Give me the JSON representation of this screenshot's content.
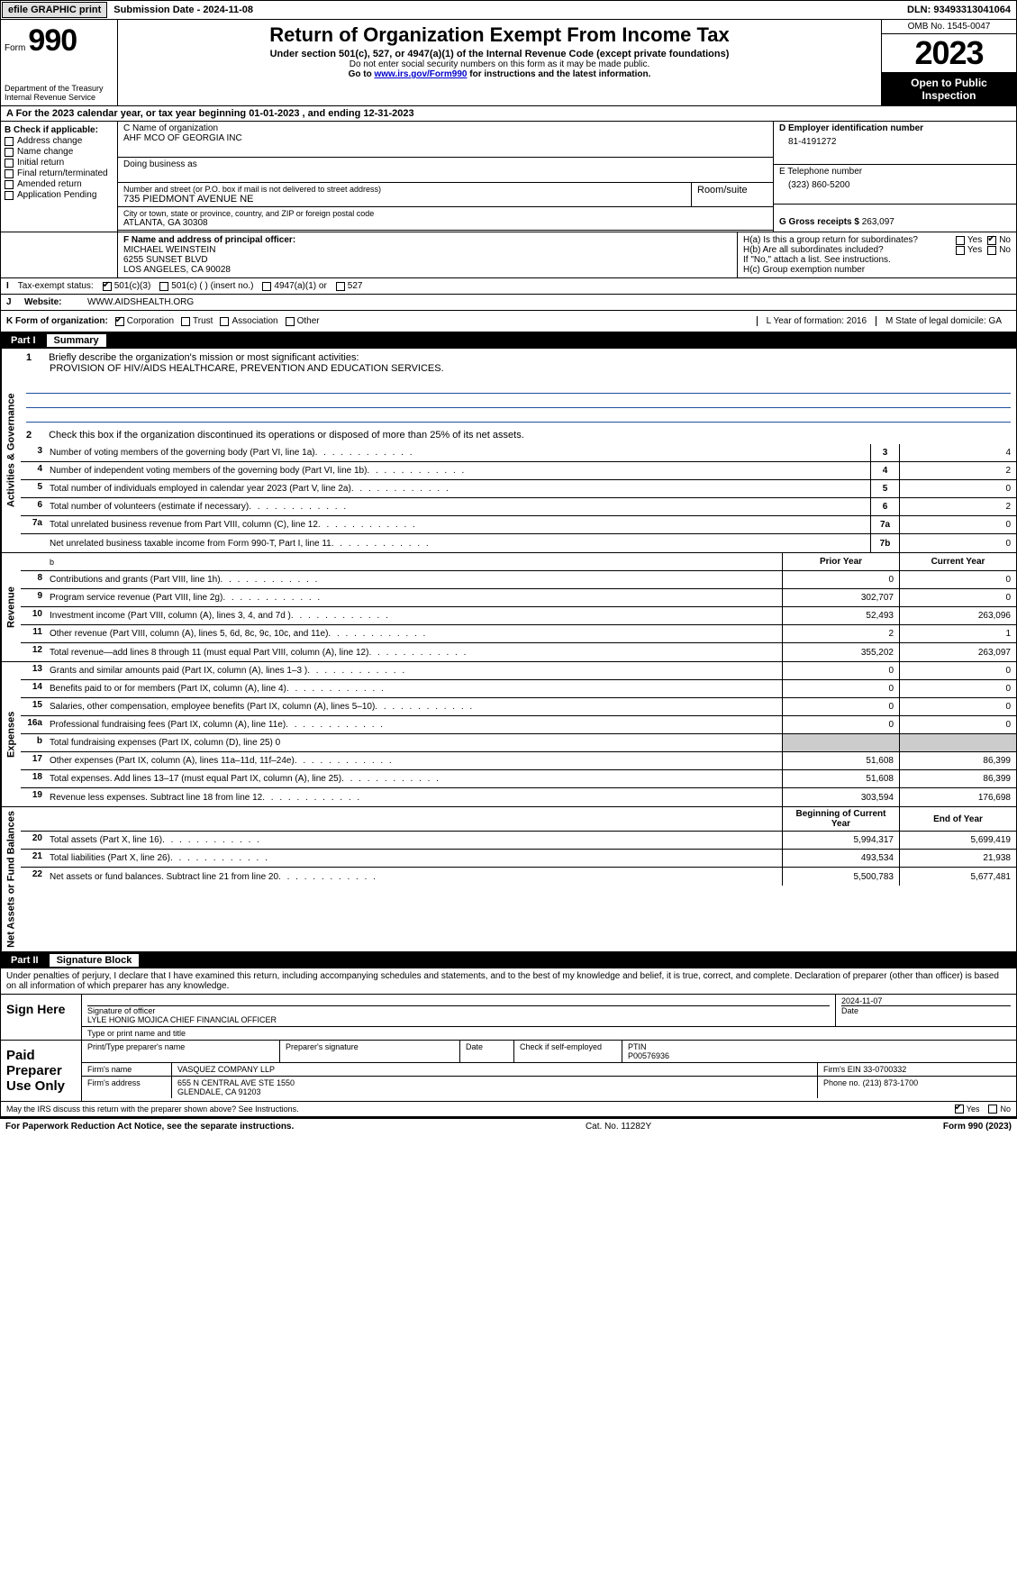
{
  "top_bar": {
    "efile": "efile GRAPHIC print",
    "sub_date_label": "Submission Date - 2024-11-08",
    "dln": "DLN: 93493313041064"
  },
  "header": {
    "form_prefix": "Form",
    "form_num": "990",
    "dept": "Department of the Treasury Internal Revenue Service",
    "title": "Return of Organization Exempt From Income Tax",
    "subtitle": "Under section 501(c), 527, or 4947(a)(1) of the Internal Revenue Code (except private foundations)",
    "ssn_note": "Do not enter social security numbers on this form as it may be made public.",
    "goto_prefix": "Go to ",
    "goto_link": "www.irs.gov/Form990",
    "goto_suffix": " for instructions and the latest information.",
    "omb": "OMB No. 1545-0047",
    "year": "2023",
    "open_pub": "Open to Public Inspection"
  },
  "row_a": "A For the 2023 calendar year, or tax year beginning 01-01-2023    , and ending 12-31-2023",
  "section_b": {
    "label": "B Check if applicable:",
    "items": [
      "Address change",
      "Name change",
      "Initial return",
      "Final return/terminated",
      "Amended return",
      "Application Pending"
    ]
  },
  "section_c": {
    "name_label": "C Name of organization",
    "name": "AHF MCO OF GEORGIA INC",
    "dba_label": "Doing business as",
    "addr_label": "Number and street (or P.O. box if mail is not delivered to street address)",
    "room_label": "Room/suite",
    "addr": "735 PIEDMONT AVENUE NE",
    "city_label": "City or town, state or province, country, and ZIP or foreign postal code",
    "city": "ATLANTA, GA   30308",
    "officer_label": "F  Name and address of principal officer:",
    "officer_name": "MICHAEL WEINSTEIN",
    "officer_addr1": "6255 SUNSET BLVD",
    "officer_addr2": "LOS ANGELES, CA  90028"
  },
  "section_d": {
    "label": "D Employer identification number",
    "value": "81-4191272"
  },
  "section_e": {
    "label": "E Telephone number",
    "value": "(323) 860-5200"
  },
  "section_g": {
    "label": "G Gross receipts $",
    "value": "263,097"
  },
  "section_h": {
    "h_a": "H(a)  Is this a group return for subordinates?",
    "h_b": "H(b)  Are all subordinates included?",
    "h_b_note": "If \"No,\" attach a list. See instructions.",
    "h_c": "H(c)  Group exemption number",
    "yes": "Yes",
    "no": "No"
  },
  "tax_status": {
    "label_i": "I",
    "label": "Tax-exempt status:",
    "opt1": "501(c)(3)",
    "opt2": "501(c) (  ) (insert no.)",
    "opt3": "4947(a)(1) or",
    "opt4": "527"
  },
  "website": {
    "label_j": "J",
    "label": "Website:",
    "value": "WWW.AIDSHEALTH.ORG"
  },
  "row_k": {
    "label": "K Form of organization:",
    "opts": [
      "Corporation",
      "Trust",
      "Association",
      "Other"
    ],
    "l": "L Year of formation: 2016",
    "m": "M State of legal domicile: GA"
  },
  "part1": {
    "num": "Part I",
    "title": "Summary"
  },
  "summary": {
    "sec_activities": "Activities & Governance",
    "sec_revenue": "Revenue",
    "sec_expenses": "Expenses",
    "sec_net": "Net Assets or Fund Balances",
    "l1": "Briefly describe the organization's mission or most significant activities:",
    "mission": "PROVISION OF HIV/AIDS HEALTHCARE, PREVENTION AND EDUCATION SERVICES.",
    "l2": "Check this box        if the organization discontinued its operations or disposed of more than 25% of its net assets.",
    "rows_gov": [
      {
        "n": "3",
        "d": "Number of voting members of the governing body (Part VI, line 1a)",
        "b": "3",
        "v": "4"
      },
      {
        "n": "4",
        "d": "Number of independent voting members of the governing body (Part VI, line 1b)",
        "b": "4",
        "v": "2"
      },
      {
        "n": "5",
        "d": "Total number of individuals employed in calendar year 2023 (Part V, line 2a)",
        "b": "5",
        "v": "0"
      },
      {
        "n": "6",
        "d": "Total number of volunteers (estimate if necessary)",
        "b": "6",
        "v": "2"
      },
      {
        "n": "7a",
        "d": "Total unrelated business revenue from Part VIII, column (C), line 12",
        "b": "7a",
        "v": "0"
      },
      {
        "n": "",
        "d": "Net unrelated business taxable income from Form 990-T, Part I, line 11",
        "b": "7b",
        "v": "0"
      }
    ],
    "col_prior": "Prior Year",
    "col_current": "Current Year",
    "col_begin": "Beginning of Current Year",
    "col_end": "End of Year",
    "rows_rev": [
      {
        "n": "8",
        "d": "Contributions and grants (Part VIII, line 1h)",
        "p": "0",
        "c": "0"
      },
      {
        "n": "9",
        "d": "Program service revenue (Part VIII, line 2g)",
        "p": "302,707",
        "c": "0"
      },
      {
        "n": "10",
        "d": "Investment income (Part VIII, column (A), lines 3, 4, and 7d )",
        "p": "52,493",
        "c": "263,096"
      },
      {
        "n": "11",
        "d": "Other revenue (Part VIII, column (A), lines 5, 6d, 8c, 9c, 10c, and 11e)",
        "p": "2",
        "c": "1"
      },
      {
        "n": "12",
        "d": "Total revenue—add lines 8 through 11 (must equal Part VIII, column (A), line 12)",
        "p": "355,202",
        "c": "263,097"
      }
    ],
    "rows_exp": [
      {
        "n": "13",
        "d": "Grants and similar amounts paid (Part IX, column (A), lines 1–3 )",
        "p": "0",
        "c": "0"
      },
      {
        "n": "14",
        "d": "Benefits paid to or for members (Part IX, column (A), line 4)",
        "p": "0",
        "c": "0"
      },
      {
        "n": "15",
        "d": "Salaries, other compensation, employee benefits (Part IX, column (A), lines 5–10)",
        "p": "0",
        "c": "0"
      },
      {
        "n": "16a",
        "d": "Professional fundraising fees (Part IX, column (A), line 11e)",
        "p": "0",
        "c": "0"
      },
      {
        "n": "b",
        "d": "Total fundraising expenses (Part IX, column (D), line 25) 0",
        "p": "",
        "c": "",
        "shaded": true
      },
      {
        "n": "17",
        "d": "Other expenses (Part IX, column (A), lines 11a–11d, 11f–24e)",
        "p": "51,608",
        "c": "86,399"
      },
      {
        "n": "18",
        "d": "Total expenses. Add lines 13–17 (must equal Part IX, column (A), line 25)",
        "p": "51,608",
        "c": "86,399"
      },
      {
        "n": "19",
        "d": "Revenue less expenses. Subtract line 18 from line 12",
        "p": "303,594",
        "c": "176,698"
      }
    ],
    "rows_net": [
      {
        "n": "20",
        "d": "Total assets (Part X, line 16)",
        "p": "5,994,317",
        "c": "5,699,419"
      },
      {
        "n": "21",
        "d": "Total liabilities (Part X, line 26)",
        "p": "493,534",
        "c": "21,938"
      },
      {
        "n": "22",
        "d": "Net assets or fund balances. Subtract line 21 from line 20",
        "p": "5,500,783",
        "c": "5,677,481"
      }
    ]
  },
  "part2": {
    "num": "Part II",
    "title": "Signature Block"
  },
  "sig": {
    "penalty": "Under penalties of perjury, I declare that I have examined this return, including accompanying schedules and statements, and to the best of my knowledge and belief, it is true, correct, and complete. Declaration of preparer (other than officer) is based on all information of which preparer has any knowledge.",
    "sign_here": "Sign Here",
    "sig_officer": "Signature of officer",
    "officer": "LYLE HONIG MOJICA  CHIEF FINANCIAL OFFICER",
    "type_name": "Type or print name and title",
    "date": "Date",
    "date_val": "2024-11-07",
    "paid": "Paid Preparer Use Only",
    "prep_name_lbl": "Print/Type preparer's name",
    "prep_sig_lbl": "Preparer's signature",
    "check_self": "Check          if self-employed",
    "ptin_lbl": "PTIN",
    "ptin": "P00576936",
    "firm_name_lbl": "Firm's name",
    "firm_name": "VASQUEZ COMPANY LLP",
    "firm_ein_lbl": "Firm's EIN",
    "firm_ein": "33-0700332",
    "firm_addr_lbl": "Firm's address",
    "firm_addr1": "655 N CENTRAL AVE STE 1550",
    "firm_addr2": "GLENDALE, CA  91203",
    "phone_lbl": "Phone no.",
    "phone": "(213) 873-1700",
    "discuss": "May the IRS discuss this return with the preparer shown above? See Instructions.",
    "yes": "Yes",
    "no": "No"
  },
  "footer": {
    "paperwork": "For Paperwork Reduction Act Notice, see the separate instructions.",
    "cat": "Cat. No. 11282Y",
    "form": "Form 990 (2023)"
  }
}
